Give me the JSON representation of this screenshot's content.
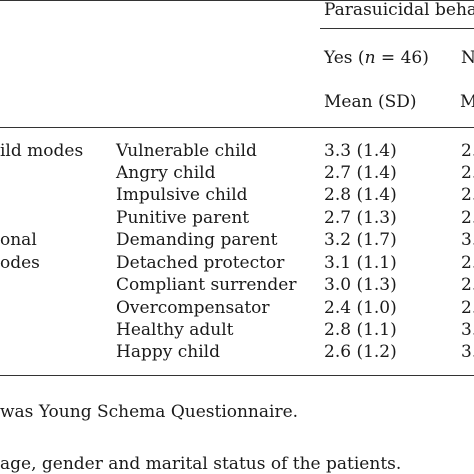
{
  "header": {
    "group_label": "Parasuicidal behav",
    "yes_label_prefix": "Yes (",
    "yes_label_n": "n",
    "yes_label_suffix": " = 46)",
    "no_label_fragment": "N",
    "stat_label": "Mean (SD)",
    "stat_label_fragment": "M"
  },
  "groups": [
    {
      "label": "ild modes"
    },
    {
      "label": "onal"
    },
    {
      "label": "odes"
    }
  ],
  "rows": [
    {
      "mode": "Vulnerable child",
      "yes": "3.3 (1.4)",
      "no_fragment": "2."
    },
    {
      "mode": "Angry child",
      "yes": "2.7 (1.4)",
      "no_fragment": "2."
    },
    {
      "mode": "Impulsive child",
      "yes": "2.8 (1.4)",
      "no_fragment": "2."
    },
    {
      "mode": "Punitive parent",
      "yes": "2.7 (1.3)",
      "no_fragment": "2."
    },
    {
      "mode": "Demanding parent",
      "yes": "3.2 (1.7)",
      "no_fragment": "3."
    },
    {
      "mode": "Detached protector",
      "yes": "3.1 (1.1)",
      "no_fragment": "2."
    },
    {
      "mode": "Compliant surrender",
      "yes": "3.0 (1.3)",
      "no_fragment": "2."
    },
    {
      "mode": "Overcompensator",
      "yes": "2.4 (1.0)",
      "no_fragment": "2."
    },
    {
      "mode": "Healthy adult",
      "yes": "2.8 (1.1)",
      "no_fragment": "3."
    },
    {
      "mode": "Happy child",
      "yes": "2.6 (1.2)",
      "no_fragment": "3."
    }
  ],
  "footnotes": [
    "was Young Schema Questionnaire.",
    "age, gender and marital status of the patients."
  ]
}
